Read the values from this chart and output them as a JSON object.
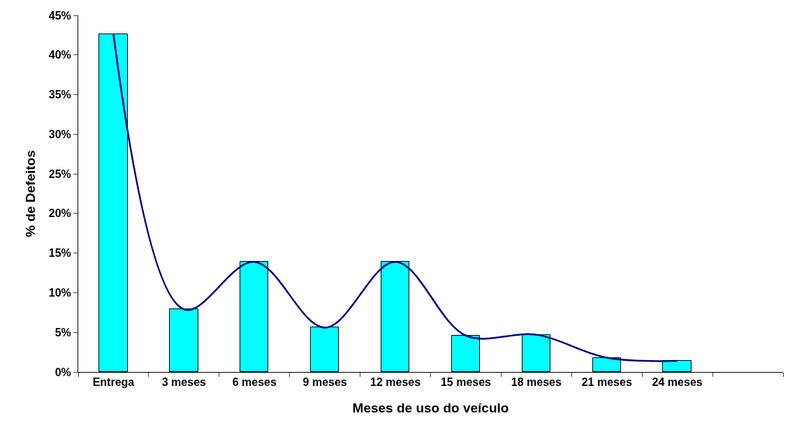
{
  "chart_data": {
    "type": "bar",
    "xlabel": "Meses de uso do veículo",
    "ylabel": "% de Defeitos",
    "categories": [
      "Entrega",
      "3 meses",
      "6 meses",
      "9 meses",
      "12 meses",
      "15 meses",
      "18 meses",
      "21 meses",
      "24 meses",
      null
    ],
    "series": [
      {
        "color": "#00ffff",
        "values": [
          0.426,
          0.079,
          0.139,
          0.056,
          0.139,
          0.046,
          0.047,
          0.018,
          0.014,
          null
        ]
      },
      {
        "type": "line",
        "color": "#000080",
        "values": [
          0.426,
          0.079,
          0.139,
          0.056,
          0.139,
          0.046,
          0.047,
          0.018,
          0.014,
          null
        ]
      }
    ],
    "ylim": [
      0,
      0.45
    ],
    "yticks": [
      {
        "value": 0,
        "label": "0%"
      },
      {
        "value": 0.05,
        "label": "5%"
      },
      {
        "value": 0.1,
        "label": "10%"
      },
      {
        "value": 0.15,
        "label": "15%"
      },
      {
        "value": 0.2,
        "label": "20%"
      },
      {
        "value": 0.25,
        "label": "25%"
      },
      {
        "value": 0.3,
        "label": "30%"
      },
      {
        "value": 0.35,
        "label": "35%"
      },
      {
        "value": 0.4,
        "label": "40%"
      },
      {
        "value": 0.45,
        "label": "45%"
      }
    ],
    "grid": false,
    "legend": false,
    "marker": "none",
    "line_style": "solid"
  }
}
